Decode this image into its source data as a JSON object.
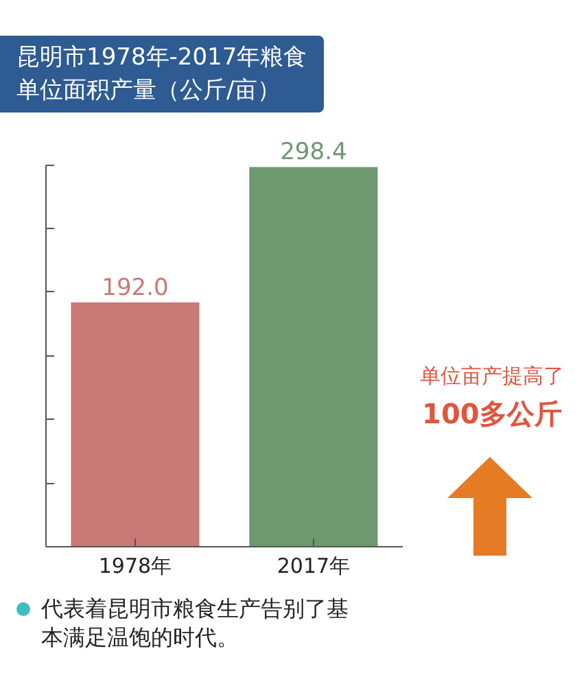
{
  "chart_data": {
    "type": "bar",
    "title": "昆明市1978年-2017年粮食单位面积产量（公斤/亩）",
    "categories": [
      "1978年",
      "2017年"
    ],
    "values": [
      192.0,
      298.4
    ],
    "colors": [
      "#c97a76",
      "#6e9870"
    ],
    "value_labels": [
      "192.0",
      "298.4"
    ],
    "tick_labels": "x",
    "annotations": [
      "单位亩产提高了",
      "100多公斤",
      "代表着昆明市粮食生产告别了基本满足温饱的时代。"
    ]
  }
}
